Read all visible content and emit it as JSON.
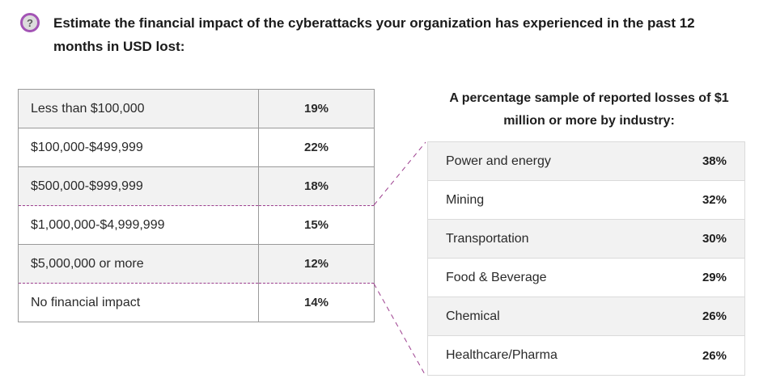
{
  "question": {
    "icon": "question-icon",
    "text": "Estimate the financial impact of the cyberattacks your organization has experienced in the past 12 months in USD lost:"
  },
  "loss_table": {
    "rows": [
      {
        "label": "Less than $100,000",
        "value": "19%"
      },
      {
        "label": "$100,000-$499,999",
        "value": "22%"
      },
      {
        "label": "$500,000-$999,999",
        "value": "18%"
      },
      {
        "label": "$1,000,000-$4,999,999",
        "value": "15%"
      },
      {
        "label": "$5,000,000 or more",
        "value": "12%"
      },
      {
        "label": "No financial impact",
        "value": "14%"
      }
    ]
  },
  "industry_panel": {
    "title": "A percentage sample of reported losses of $1 million or more by industry:",
    "rows": [
      {
        "industry": "Power and energy",
        "value": "38%"
      },
      {
        "industry": "Mining",
        "value": "32%"
      },
      {
        "industry": "Transportation",
        "value": "30%"
      },
      {
        "industry": "Food & Beverage",
        "value": "29%"
      },
      {
        "industry": "Chemical",
        "value": "26%"
      },
      {
        "industry": "Healthcare/Pharma",
        "value": "26%"
      }
    ]
  },
  "colors": {
    "accent": "#9c3e8e",
    "icon_ring": "#a354b5",
    "row_shade": "#f2f2f2"
  }
}
